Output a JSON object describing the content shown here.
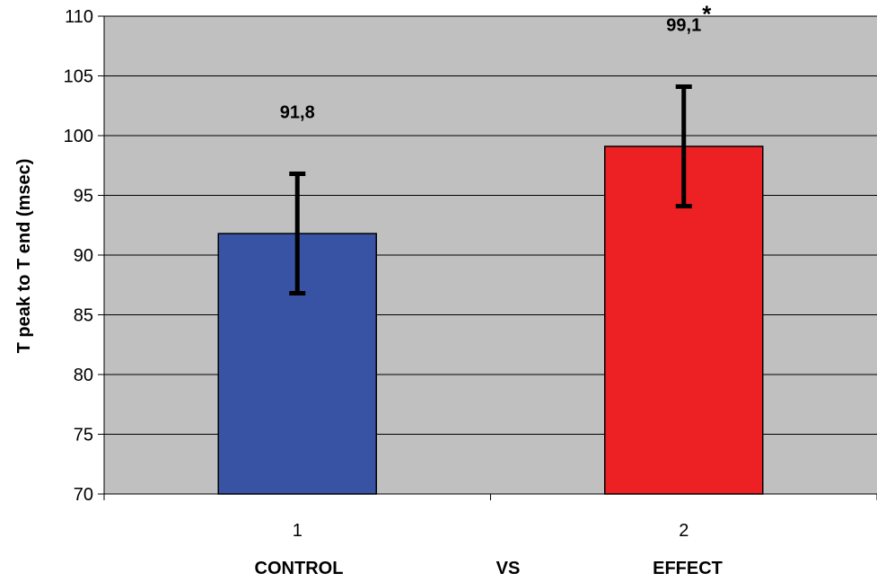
{
  "chart_data": {
    "type": "bar",
    "categories": [
      "1",
      "2"
    ],
    "values": [
      91.8,
      99.1
    ],
    "error": [
      5.0,
      5.0
    ],
    "data_labels": [
      "91,8",
      "99,1"
    ],
    "significance_marks": [
      "",
      "*"
    ],
    "ylabel": "T peak to T end (msec)",
    "xlabel": "",
    "ylim": [
      70,
      110
    ],
    "yticks": [
      70,
      75,
      80,
      85,
      90,
      95,
      100,
      105,
      110
    ],
    "grid": true,
    "legend": "none",
    "group_labels": [
      "CONTROL",
      "VS",
      "EFFECT"
    ],
    "colors": {
      "plot_background": "#c0c0c0",
      "bars": [
        "#3853a4",
        "#ed2024"
      ],
      "bar_outline": "#000000",
      "error_bar": "#000000",
      "gridline": "#000000"
    }
  }
}
